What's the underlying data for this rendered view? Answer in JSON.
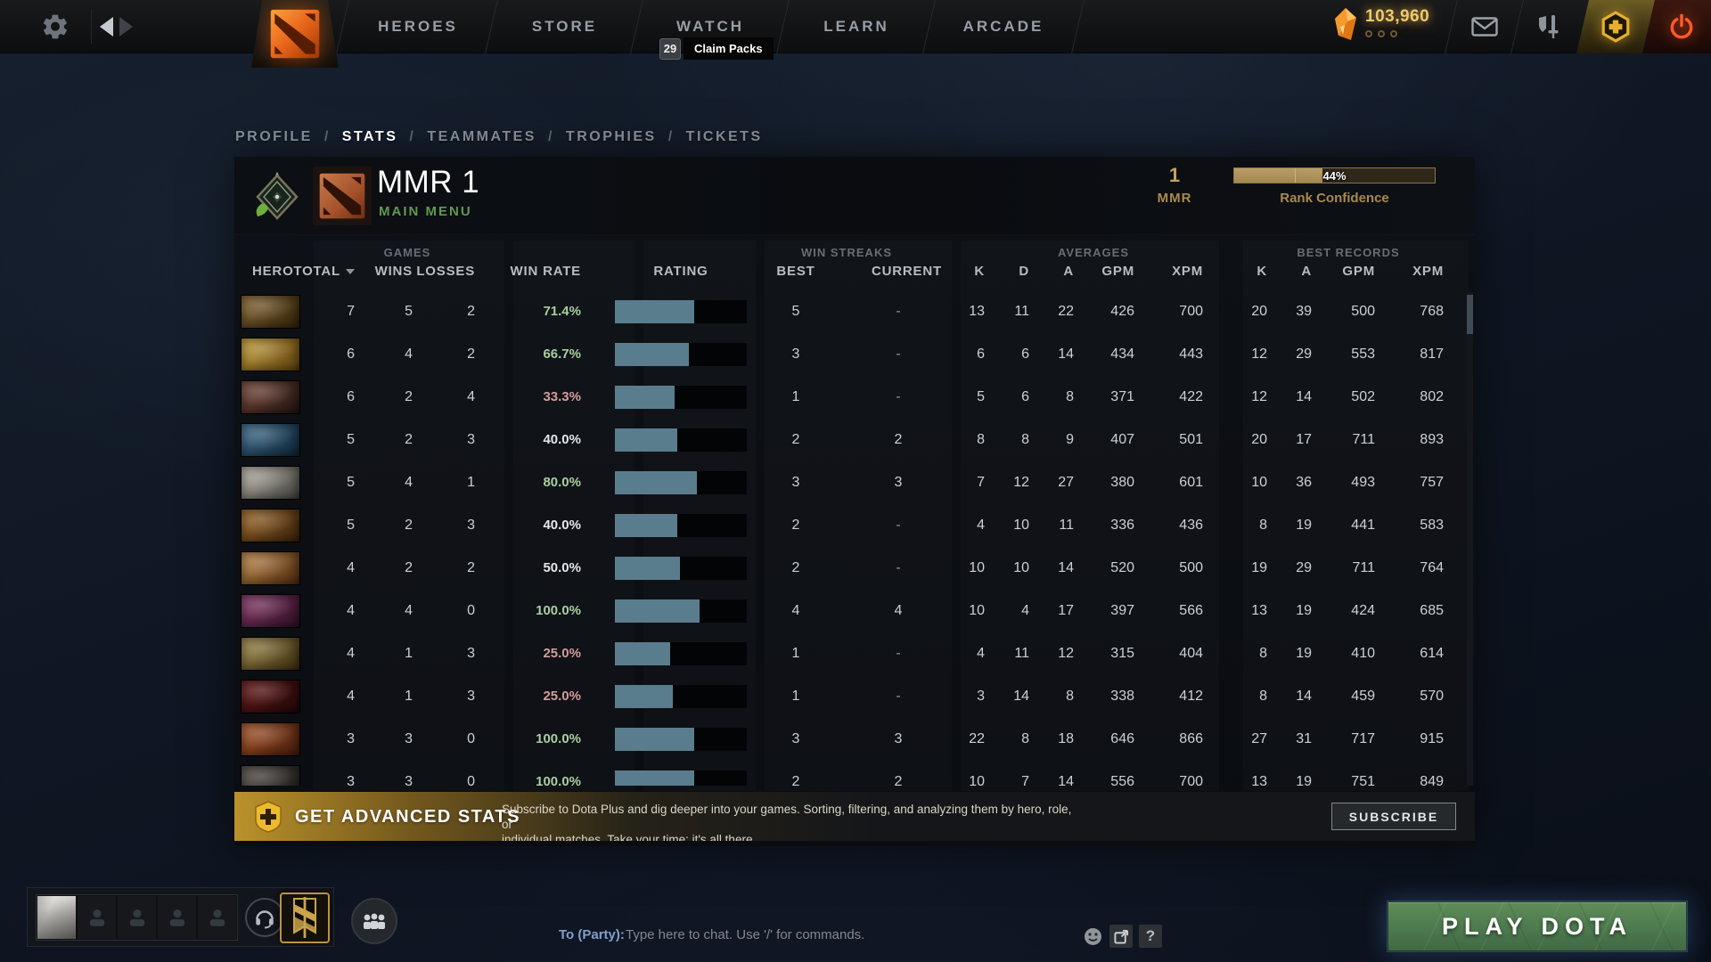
{
  "topbar": {
    "tabs": [
      "HEROES",
      "STORE",
      "WATCH",
      "LEARN",
      "ARCADE"
    ],
    "claim_count": "29",
    "claim_label": "Claim Packs",
    "currency": "103,960"
  },
  "breadcrumb": {
    "items": [
      "PROFILE",
      "STATS",
      "TEAMMATES",
      "TROPHIES",
      "TICKETS"
    ],
    "active": "STATS",
    "separator": "/"
  },
  "stats_header": {
    "title": "MMR 1",
    "subtitle": "MAIN MENU",
    "mmr_value": "1",
    "mmr_label": "MMR",
    "confidence_value": "44%",
    "confidence_pct": 44,
    "confidence_label": "Rank Confidence"
  },
  "table": {
    "group_headers": [
      "GAMES",
      "WIN STREAKS",
      "AVERAGES",
      "BEST RECORDS"
    ],
    "columns": {
      "hero": "HERO",
      "total": "TOTAL",
      "wins": "WINS",
      "losses": "LOSSES",
      "win_rate": "WIN RATE",
      "rating": "RATING",
      "best": "BEST",
      "current": "CURRENT",
      "k": "K",
      "d": "D",
      "a": "A",
      "gpm": "GPM",
      "xpm": "XPM",
      "rk": "K",
      "ra": "A",
      "rgpm": "GPM",
      "rxpm": "XPM"
    },
    "rows": [
      {
        "portrait_colors": [
          "#8a6a34",
          "#2e2008"
        ],
        "total": "7",
        "wins": "5",
        "losses": "2",
        "win_rate": "71.4%",
        "trend": "pos",
        "rating_pct": 60,
        "best": "5",
        "current": "-",
        "k": "13",
        "d": "11",
        "a": "22",
        "gpm": "426",
        "xpm": "700",
        "rk": "20",
        "ra": "39",
        "rgpm": "500",
        "rxpm": "768"
      },
      {
        "portrait_colors": [
          "#c9a43a",
          "#5a3c0e"
        ],
        "total": "6",
        "wins": "4",
        "losses": "2",
        "win_rate": "66.7%",
        "trend": "pos",
        "rating_pct": 56,
        "best": "3",
        "current": "-",
        "k": "6",
        "d": "6",
        "a": "14",
        "gpm": "434",
        "xpm": "443",
        "rk": "12",
        "ra": "29",
        "rgpm": "553",
        "rxpm": "817"
      },
      {
        "portrait_colors": [
          "#7a4a3a",
          "#201210"
        ],
        "total": "6",
        "wins": "2",
        "losses": "4",
        "win_rate": "33.3%",
        "trend": "neg",
        "rating_pct": 45,
        "best": "1",
        "current": "-",
        "k": "5",
        "d": "6",
        "a": "8",
        "gpm": "371",
        "xpm": "422",
        "rk": "12",
        "ra": "14",
        "rgpm": "502",
        "rxpm": "802"
      },
      {
        "portrait_colors": [
          "#3f6f8e",
          "#0e2436"
        ],
        "total": "5",
        "wins": "2",
        "losses": "3",
        "win_rate": "40.0%",
        "trend": "neu",
        "rating_pct": 47,
        "best": "2",
        "current": "2",
        "k": "8",
        "d": "8",
        "a": "9",
        "gpm": "407",
        "xpm": "501",
        "rk": "20",
        "ra": "17",
        "rgpm": "711",
        "rxpm": "893"
      },
      {
        "portrait_colors": [
          "#b8b4a8",
          "#3e3e38"
        ],
        "total": "5",
        "wins": "4",
        "losses": "1",
        "win_rate": "80.0%",
        "trend": "pos",
        "rating_pct": 62,
        "best": "3",
        "current": "3",
        "k": "7",
        "d": "12",
        "a": "27",
        "gpm": "380",
        "xpm": "601",
        "rk": "10",
        "ra": "36",
        "rgpm": "493",
        "rxpm": "757"
      },
      {
        "portrait_colors": [
          "#a06a2a",
          "#38200a"
        ],
        "total": "5",
        "wins": "2",
        "losses": "3",
        "win_rate": "40.0%",
        "trend": "neu",
        "rating_pct": 47,
        "best": "2",
        "current": "-",
        "k": "4",
        "d": "10",
        "a": "11",
        "gpm": "336",
        "xpm": "436",
        "rk": "8",
        "ra": "19",
        "rgpm": "441",
        "rxpm": "583"
      },
      {
        "portrait_colors": [
          "#c08a4a",
          "#4a280e"
        ],
        "total": "4",
        "wins": "2",
        "losses": "2",
        "win_rate": "50.0%",
        "trend": "neu",
        "rating_pct": 49,
        "best": "2",
        "current": "-",
        "k": "10",
        "d": "10",
        "a": "14",
        "gpm": "520",
        "xpm": "500",
        "rk": "19",
        "ra": "29",
        "rgpm": "711",
        "rxpm": "764"
      },
      {
        "portrait_colors": [
          "#8a3a6a",
          "#2c0e22"
        ],
        "total": "4",
        "wins": "4",
        "losses": "0",
        "win_rate": "100.0%",
        "trend": "pos",
        "rating_pct": 64,
        "best": "4",
        "current": "4",
        "k": "10",
        "d": "4",
        "a": "17",
        "gpm": "397",
        "xpm": "566",
        "rk": "13",
        "ra": "19",
        "rgpm": "424",
        "rxpm": "685"
      },
      {
        "portrait_colors": [
          "#a08a4a",
          "#382c10"
        ],
        "total": "4",
        "wins": "1",
        "losses": "3",
        "win_rate": "25.0%",
        "trend": "neg",
        "rating_pct": 42,
        "best": "1",
        "current": "-",
        "k": "4",
        "d": "11",
        "a": "12",
        "gpm": "315",
        "xpm": "404",
        "rk": "8",
        "ra": "19",
        "rgpm": "410",
        "rxpm": "614"
      },
      {
        "portrait_colors": [
          "#6a1a1a",
          "#1e0606"
        ],
        "total": "4",
        "wins": "1",
        "losses": "3",
        "win_rate": "25.0%",
        "trend": "neg",
        "rating_pct": 44,
        "best": "1",
        "current": "-",
        "k": "3",
        "d": "14",
        "a": "8",
        "gpm": "338",
        "xpm": "412",
        "rk": "8",
        "ra": "14",
        "rgpm": "459",
        "rxpm": "570"
      },
      {
        "portrait_colors": [
          "#b05a2a",
          "#40180a"
        ],
        "total": "3",
        "wins": "3",
        "losses": "0",
        "win_rate": "100.0%",
        "trend": "pos",
        "rating_pct": 60,
        "best": "3",
        "current": "3",
        "k": "22",
        "d": "8",
        "a": "18",
        "gpm": "646",
        "xpm": "866",
        "rk": "27",
        "ra": "31",
        "rgpm": "717",
        "rxpm": "915"
      },
      {
        "portrait_colors": [
          "#55504a",
          "#1a1816"
        ],
        "total": "3",
        "wins": "3",
        "losses": "0",
        "win_rate": "100.0%",
        "trend": "pos",
        "rating_pct": 60,
        "best": "2",
        "current": "2",
        "k": "10",
        "d": "7",
        "a": "14",
        "gpm": "556",
        "xpm": "700",
        "rk": "13",
        "ra": "19",
        "rgpm": "751",
        "rxpm": "849"
      }
    ]
  },
  "banner": {
    "title": "GET ADVANCED STATS",
    "description": "Subscribe to Dota Plus and dig deeper into your games. Sorting, filtering, and analyzing them by hero, role, or\nindividual matches. Take your time; it's all there.",
    "button": "SUBSCRIBE"
  },
  "hud": {
    "chat_to": "To (Party):",
    "chat_placeholder": "Type here to chat. Use '/' for commands.",
    "play_button": "PLAY DOTA"
  },
  "colors": {
    "gold": "#c3a25c",
    "positive_green": "#a8cf9f",
    "negative_red": "#d49c9c",
    "rating_bar": "#5a7d8e",
    "subtitle_green": "#5f9950",
    "play_green": "#4d7a4e"
  }
}
